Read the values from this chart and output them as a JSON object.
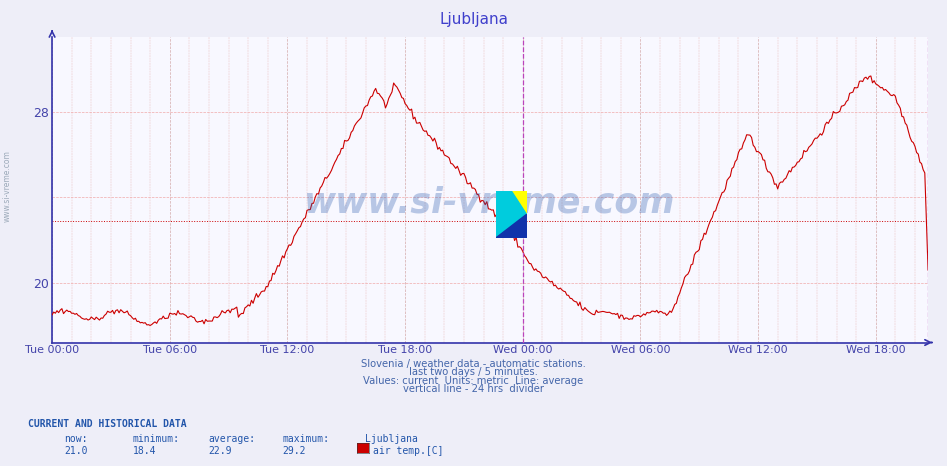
{
  "title": "Ljubljana",
  "title_color": "#4040cc",
  "bg_color": "#eeeef8",
  "plot_bg_color": "#f8f8ff",
  "line_color": "#cc0000",
  "line_width": 0.8,
  "avg_value": 22.9,
  "vline_24h_color": "#bb44bb",
  "vline_end_color": "#bb44bb",
  "yticks": [
    20,
    28
  ],
  "ylabel_color": "#4444aa",
  "xlabel_color": "#4444aa",
  "xtick_labels": [
    "Tue 00:00",
    "Tue 06:00",
    "Tue 12:00",
    "Tue 18:00",
    "Wed 00:00",
    "Wed 06:00",
    "Wed 12:00",
    "Wed 18:00"
  ],
  "watermark": "www.si-vreme.com",
  "watermark_color": "#2255aa",
  "watermark_alpha": 0.3,
  "subtitle1": "Slovenia / weather data - automatic stations.",
  "subtitle2": "last two days / 5 minutes.",
  "subtitle3": "Values: current  Units: metric  Line: average",
  "subtitle4": "vertical line - 24 hrs  divider",
  "subtitle_color": "#4466aa",
  "footer_title": "CURRENT AND HISTORICAL DATA",
  "footer_color": "#2255aa",
  "now_val": "21.0",
  "min_val": "18.4",
  "avg_val": "22.9",
  "max_val": "29.2",
  "station": "Ljubljana",
  "series_label": "air temp.[C]",
  "legend_color": "#cc0000",
  "sidebar_text": "www.si-vreme.com",
  "sidebar_color": "#8899aa",
  "ylim_min": 17.2,
  "ylim_max": 31.5,
  "n_total": 537,
  "tick_positions": [
    0,
    72,
    144,
    216,
    288,
    360,
    432,
    504
  ]
}
